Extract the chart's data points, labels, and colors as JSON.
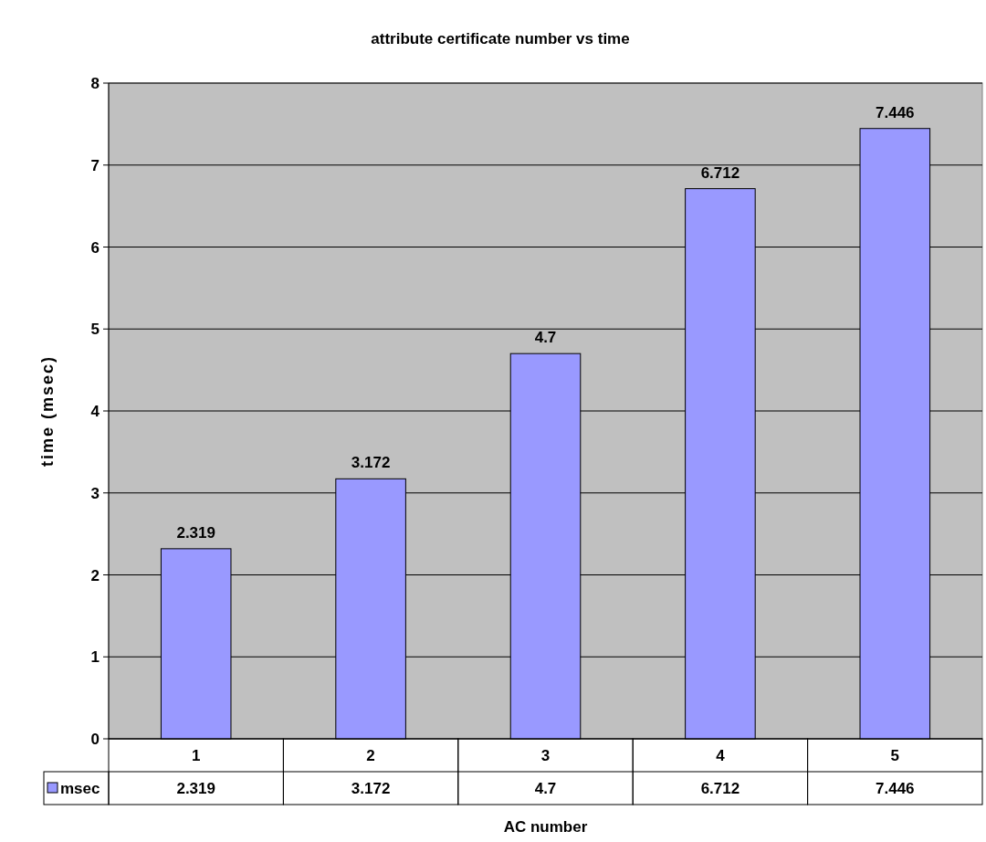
{
  "chart_data": {
    "type": "bar",
    "title": "attribute certificate number vs time",
    "xlabel": "AC number",
    "ylabel": "time (msec)",
    "categories": [
      "1",
      "2",
      "3",
      "4",
      "5"
    ],
    "series": [
      {
        "name": "msec",
        "color": "#9999ff",
        "values": [
          2.319,
          3.172,
          4.7,
          6.712,
          7.446
        ]
      }
    ],
    "annotations": [
      {
        "text": "2.319",
        "x": "1",
        "y": 2.319
      },
      {
        "text": "3.172",
        "x": "2",
        "y": 3.172
      },
      {
        "text": "4.7",
        "x": "3",
        "y": 4.7
      },
      {
        "text": "6.712",
        "x": "4",
        "y": 6.712
      },
      {
        "text": "7.446",
        "x": "5",
        "y": 7.446
      }
    ],
    "ylim": [
      0,
      8
    ],
    "yticks": [
      0,
      1,
      2,
      3,
      4,
      5,
      6,
      7,
      8
    ],
    "grid": "y",
    "data_labels": true,
    "legend": "bottom left"
  }
}
